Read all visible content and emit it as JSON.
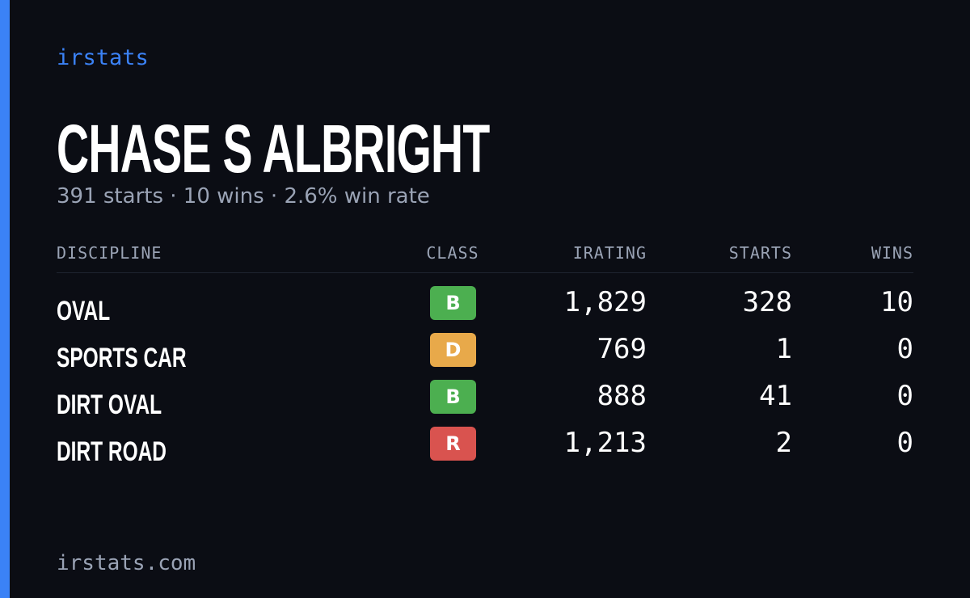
{
  "brand": "irstats",
  "header": {
    "name": "CHASE S ALBRIGHT",
    "summary": "391 starts · 10 wins · 2.6% win rate"
  },
  "table": {
    "columns": [
      "DISCIPLINE",
      "CLASS",
      "IRATING",
      "STARTS",
      "WINS"
    ],
    "rows": [
      {
        "discipline": "OVAL",
        "class": "B",
        "class_color": "#4caf50",
        "irating": "1,829",
        "starts": "328",
        "wins": "10"
      },
      {
        "discipline": "SPORTS CAR",
        "class": "D",
        "class_color": "#e8a94a",
        "irating": "769",
        "starts": "1",
        "wins": "0"
      },
      {
        "discipline": "DIRT OVAL",
        "class": "B",
        "class_color": "#4caf50",
        "irating": "888",
        "starts": "41",
        "wins": "0"
      },
      {
        "discipline": "DIRT ROAD",
        "class": "R",
        "class_color": "#d9534f",
        "irating": "1,213",
        "starts": "2",
        "wins": "0"
      }
    ]
  },
  "footer": "irstats.com"
}
